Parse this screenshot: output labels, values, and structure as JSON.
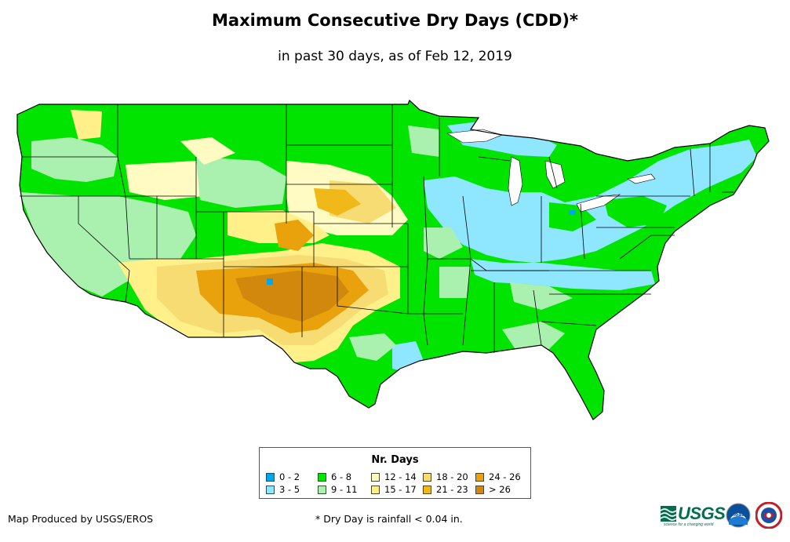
{
  "header": {
    "title": "Maximum Consecutive Dry Days (CDD)*",
    "subtitle": "in past 30 days, as of Feb 12, 2019"
  },
  "legend": {
    "title": "Nr. Days",
    "items": [
      {
        "label": "0 - 2",
        "color": "#00a6e8"
      },
      {
        "label": "3 - 5",
        "color": "#8ee7ff"
      },
      {
        "label": "6 - 8",
        "color": "#00e400"
      },
      {
        "label": "9 - 11",
        "color": "#aaf0ae"
      },
      {
        "label": "12 - 14",
        "color": "#fffbc2"
      },
      {
        "label": "15 - 17",
        "color": "#fff08a"
      },
      {
        "label": "18 - 20",
        "color": "#f7dc73"
      },
      {
        "label": "21 - 23",
        "color": "#f0b818"
      },
      {
        "label": "24 - 26",
        "color": "#e9a20c"
      },
      {
        "label": "> 26",
        "color": "#d1880c"
      }
    ]
  },
  "footer": {
    "credit": "Map Produced by USGS/EROS",
    "footnote": "* Dry Day is rainfall < 0.04 in."
  },
  "logos": {
    "usgs": "USGS",
    "usgs_tagline": "science for a changing world",
    "noaa": "noaa"
  }
}
